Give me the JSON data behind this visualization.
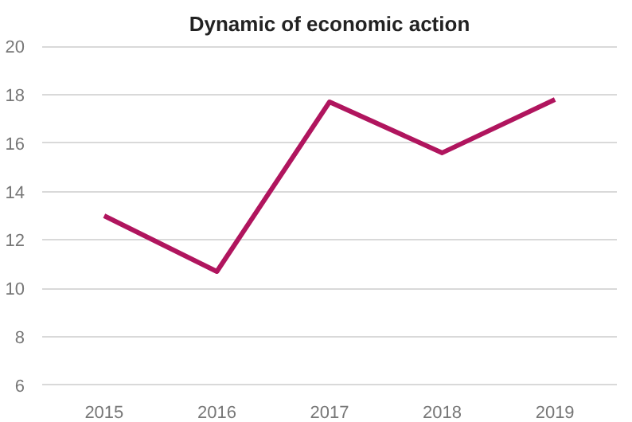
{
  "chart_data": {
    "type": "line",
    "title": "Dynamic of economic action",
    "categories": [
      "2015",
      "2016",
      "2017",
      "2018",
      "2019"
    ],
    "series": [
      {
        "color": "#b0155e",
        "values": [
          13.0,
          10.7,
          17.7,
          15.6,
          17.8
        ]
      }
    ],
    "ylim": [
      5.9,
      20.1
    ],
    "yticks": [
      6,
      8,
      10,
      12,
      14,
      16,
      18,
      20
    ],
    "grid": "y",
    "marker": "none",
    "line_style": "solid"
  }
}
